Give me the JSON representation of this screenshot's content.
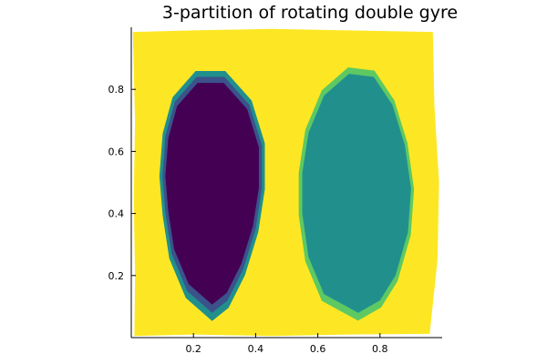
{
  "chart_data": {
    "type": "heatmap",
    "title": "3-partition of rotating double gyre",
    "xlabel": "",
    "ylabel": "",
    "xlim": [
      0.0,
      1.0
    ],
    "ylim": [
      0.0,
      1.0
    ],
    "x_ticks": [
      "0.2",
      "0.4",
      "0.6",
      "0.8"
    ],
    "y_ticks": [
      "0.2",
      "0.4",
      "0.6",
      "0.8"
    ],
    "grid": false,
    "legend": "none",
    "colors": {
      "partition_1": "#440154",
      "partition_2": "#21908d",
      "partition_3": "#fde725",
      "transition_a": "#3b528b",
      "transition_b": "#5ec962"
    },
    "regions": [
      {
        "name": "left-gyre",
        "partition": 1,
        "center": [
          0.26,
          0.52
        ],
        "outline": [
          [
            0.26,
            0.08
          ],
          [
            0.18,
            0.15
          ],
          [
            0.13,
            0.27
          ],
          [
            0.11,
            0.4
          ],
          [
            0.1,
            0.52
          ],
          [
            0.11,
            0.65
          ],
          [
            0.14,
            0.76
          ],
          [
            0.21,
            0.84
          ],
          [
            0.3,
            0.84
          ],
          [
            0.38,
            0.75
          ],
          [
            0.42,
            0.62
          ],
          [
            0.42,
            0.48
          ],
          [
            0.4,
            0.35
          ],
          [
            0.36,
            0.22
          ],
          [
            0.31,
            0.12
          ]
        ]
      },
      {
        "name": "right-gyre",
        "partition": 2,
        "center": [
          0.74,
          0.5
        ],
        "outline": [
          [
            0.73,
            0.08
          ],
          [
            0.62,
            0.14
          ],
          [
            0.57,
            0.26
          ],
          [
            0.55,
            0.4
          ],
          [
            0.55,
            0.53
          ],
          [
            0.57,
            0.66
          ],
          [
            0.62,
            0.78
          ],
          [
            0.7,
            0.85
          ],
          [
            0.78,
            0.84
          ],
          [
            0.84,
            0.75
          ],
          [
            0.88,
            0.62
          ],
          [
            0.9,
            0.48
          ],
          [
            0.89,
            0.34
          ],
          [
            0.85,
            0.2
          ],
          [
            0.8,
            0.12
          ]
        ]
      }
    ],
    "background_partition": 3
  }
}
